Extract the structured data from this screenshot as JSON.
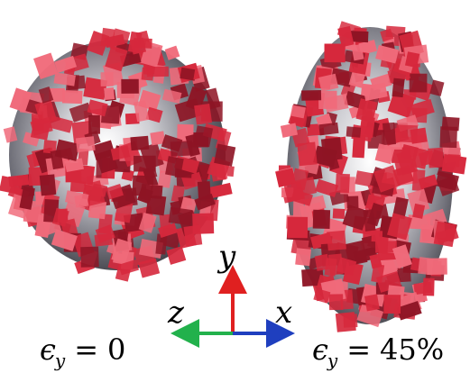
{
  "panels": [
    {
      "id": "left",
      "strain_symbol": "ϵ",
      "strain_subscript": "y",
      "strain_operator": "=",
      "strain_value": "0"
    },
    {
      "id": "right",
      "strain_symbol": "ϵ",
      "strain_subscript": "y",
      "strain_operator": "=",
      "strain_value": "45%"
    }
  ],
  "axes": {
    "y_label": "y",
    "z_label": "z",
    "x_label": "x",
    "y_color": "#e02020",
    "z_color": "#22b14c",
    "x_color": "#1f3fbf"
  },
  "colors": {
    "shell": "#bfbfc4",
    "tile": "#d6283c",
    "tile_light": "#f06a7a",
    "tile_dark": "#8e1424"
  }
}
